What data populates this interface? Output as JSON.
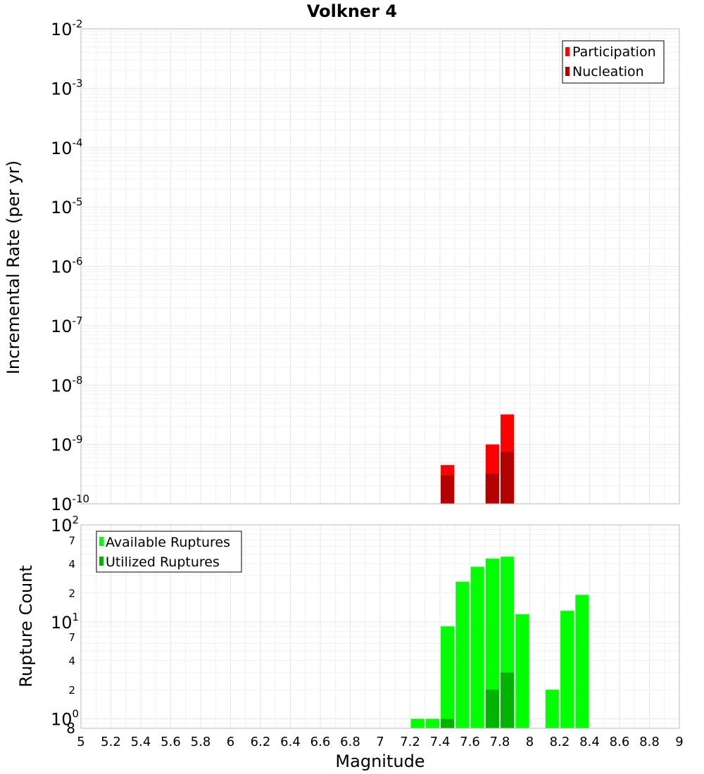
{
  "chart_data": [
    {
      "id": "rate",
      "type": "bar",
      "title": "Volkner 4",
      "ylabel": "Incremental Rate (per yr)",
      "yscale": "log",
      "ylim": [
        1e-10,
        0.01
      ],
      "xlim": [
        5,
        9
      ],
      "grid": true,
      "legend_position": "top-right",
      "bar_width": 0.09,
      "y_major_ticks": [
        {
          "base": "10",
          "exp": "-10",
          "value": 1e-10
        },
        {
          "base": "10",
          "exp": "-9",
          "value": 1e-09
        },
        {
          "base": "10",
          "exp": "-8",
          "value": 1e-08
        },
        {
          "base": "10",
          "exp": "-7",
          "value": 1e-07
        },
        {
          "base": "10",
          "exp": "-6",
          "value": 1e-06
        },
        {
          "base": "10",
          "exp": "-5",
          "value": 1e-05
        },
        {
          "base": "10",
          "exp": "-4",
          "value": 0.0001
        },
        {
          "base": "10",
          "exp": "-3",
          "value": 0.001
        },
        {
          "base": "10",
          "exp": "-2",
          "value": 0.01
        }
      ],
      "series": [
        {
          "name": "Participation",
          "color": "#ff0000",
          "points": [
            {
              "x": 7.45,
              "y": 4.5e-10
            },
            {
              "x": 7.75,
              "y": 1e-09
            },
            {
              "x": 7.85,
              "y": 3.2e-09
            }
          ]
        },
        {
          "name": "Nucleation",
          "color": "#b30000",
          "points": [
            {
              "x": 7.45,
              "y": 3e-10
            },
            {
              "x": 7.75,
              "y": 3.2e-10
            },
            {
              "x": 7.85,
              "y": 7.5e-10
            }
          ]
        }
      ]
    },
    {
      "id": "count",
      "type": "bar",
      "ylabel": "Rupture Count",
      "xlabel": "Magnitude",
      "yscale": "log",
      "ylim": [
        0.8,
        100
      ],
      "xlim": [
        5,
        9
      ],
      "grid": true,
      "legend_position": "top-left",
      "bar_width": 0.09,
      "x_ticks": [
        "5",
        "5.2",
        "5.4",
        "5.6",
        "5.8",
        "6",
        "6.2",
        "6.4",
        "6.6",
        "6.8",
        "7",
        "7.2",
        "7.4",
        "7.6",
        "7.8",
        "8",
        "8.2",
        "8.4",
        "8.6",
        "8.8",
        "9"
      ],
      "y_major_ticks": [
        {
          "base": "10",
          "exp": "0",
          "value": 1
        },
        {
          "base": "10",
          "exp": "1",
          "value": 10
        },
        {
          "base": "10",
          "exp": "2",
          "value": 100
        }
      ],
      "y_minor_ticks": [
        {
          "label": "8",
          "value": 0.8
        },
        {
          "label": "2",
          "value": 2
        },
        {
          "label": "4",
          "value": 4
        },
        {
          "label": "7",
          "value": 7
        },
        {
          "label": "2",
          "value": 20
        },
        {
          "label": "4",
          "value": 40
        },
        {
          "label": "7",
          "value": 70
        }
      ],
      "series": [
        {
          "name": "Available Ruptures",
          "color": "#00ff00",
          "points": [
            {
              "x": 7.25,
              "y": 1
            },
            {
              "x": 7.35,
              "y": 1
            },
            {
              "x": 7.45,
              "y": 9
            },
            {
              "x": 7.55,
              "y": 26
            },
            {
              "x": 7.65,
              "y": 37
            },
            {
              "x": 7.75,
              "y": 45
            },
            {
              "x": 7.85,
              "y": 47
            },
            {
              "x": 7.95,
              "y": 12
            },
            {
              "x": 8.15,
              "y": 2
            },
            {
              "x": 8.25,
              "y": 13
            },
            {
              "x": 8.35,
              "y": 19
            }
          ]
        },
        {
          "name": "Utilized Ruptures",
          "color": "#00b300",
          "points": [
            {
              "x": 7.45,
              "y": 1
            },
            {
              "x": 7.75,
              "y": 2
            },
            {
              "x": 7.85,
              "y": 3
            }
          ]
        }
      ]
    }
  ]
}
